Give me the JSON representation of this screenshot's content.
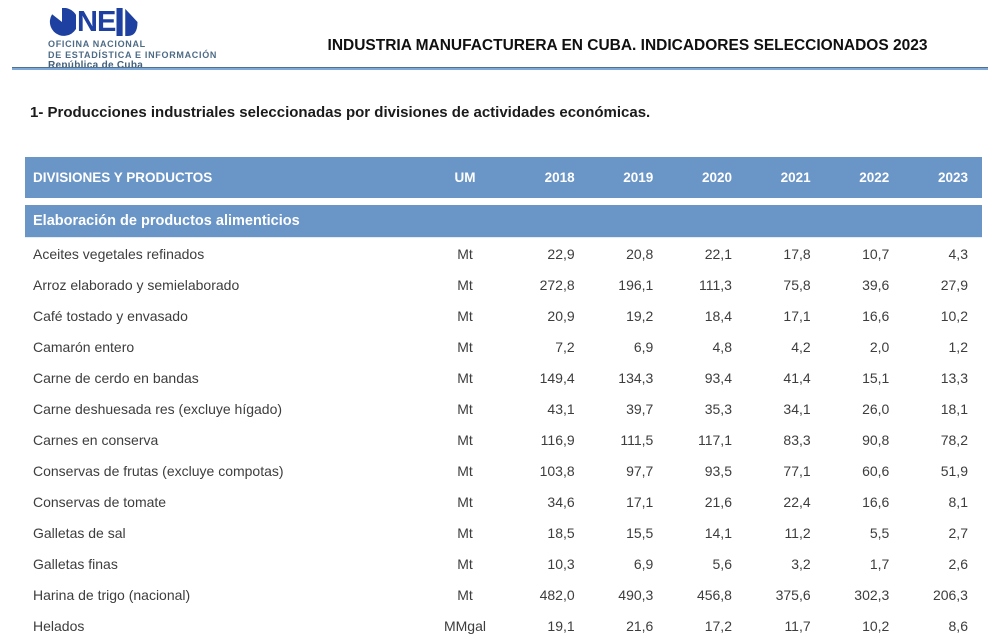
{
  "logo": {
    "mark": "ONEI",
    "mark_letters": "NE",
    "org_line1": "OFICINA NACIONAL",
    "org_line2": "DE ESTADÍSTICA E INFORMACIÓN",
    "country": "República de Cuba"
  },
  "header": {
    "title": "INDUSTRIA MANUFACTURERA EN CUBA. INDICADORES SELECCIONADOS 2023"
  },
  "section": {
    "heading": "1- Producciones industriales seleccionadas por divisiones de actividades económicas."
  },
  "table": {
    "columns": {
      "products": "DIVISIONES Y PRODUCTOS",
      "um": "UM",
      "years": [
        "2018",
        "2019",
        "2020",
        "2021",
        "2022",
        "2023"
      ]
    },
    "group": "Elaboración de productos alimenticios",
    "rows": [
      {
        "product": "Aceites vegetales refinados",
        "um": "Mt",
        "values": [
          "22,9",
          "20,8",
          "22,1",
          "17,8",
          "10,7",
          "4,3"
        ]
      },
      {
        "product": "Arroz elaborado y semielaborado",
        "um": "Mt",
        "values": [
          "272,8",
          "196,1",
          "111,3",
          "75,8",
          "39,6",
          "27,9"
        ]
      },
      {
        "product": "Café tostado y envasado",
        "um": "Mt",
        "values": [
          "20,9",
          "19,2",
          "18,4",
          "17,1",
          "16,6",
          "10,2"
        ]
      },
      {
        "product": "Camarón entero",
        "um": "Mt",
        "values": [
          "7,2",
          "6,9",
          "4,8",
          "4,2",
          "2,0",
          "1,2"
        ]
      },
      {
        "product": "Carne de cerdo en bandas",
        "um": "Mt",
        "values": [
          "149,4",
          "134,3",
          "93,4",
          "41,4",
          "15,1",
          "13,3"
        ]
      },
      {
        "product": "Carne deshuesada res (excluye hígado)",
        "um": "Mt",
        "values": [
          "43,1",
          "39,7",
          "35,3",
          "34,1",
          "26,0",
          "18,1"
        ]
      },
      {
        "product": "Carnes en conserva",
        "um": "Mt",
        "values": [
          "116,9",
          "111,5",
          "117,1",
          "83,3",
          "90,8",
          "78,2"
        ]
      },
      {
        "product": "Conservas de frutas (excluye compotas)",
        "um": "Mt",
        "values": [
          "103,8",
          "97,7",
          "93,5",
          "77,1",
          "60,6",
          "51,9"
        ]
      },
      {
        "product": "Conservas de tomate",
        "um": "Mt",
        "values": [
          "34,6",
          "17,1",
          "21,6",
          "22,4",
          "16,6",
          "8,1"
        ]
      },
      {
        "product": "Galletas de sal",
        "um": "Mt",
        "values": [
          "18,5",
          "15,5",
          "14,1",
          "11,2",
          "5,5",
          "2,7"
        ]
      },
      {
        "product": "Galletas finas",
        "um": "Mt",
        "values": [
          "10,3",
          "6,9",
          "5,6",
          "3,2",
          "1,7",
          "2,6"
        ]
      },
      {
        "product": "Harina de trigo (nacional)",
        "um": "Mt",
        "values": [
          "482,0",
          "490,3",
          "456,8",
          "375,6",
          "302,3",
          "206,3"
        ]
      },
      {
        "product": "Helados",
        "um": "MMgal",
        "values": [
          "19,1",
          "21,6",
          "17,2",
          "11,7",
          "10,2",
          "8,6"
        ]
      }
    ]
  },
  "colors": {
    "table_header_bg": "#6a95c7",
    "group_row_bg": "#6a95c7",
    "logo_blue": "#1e40a0",
    "rule_dark": "#50708c",
    "rule_light": "#7fa9d9",
    "body_text": "#3d3d3d"
  }
}
